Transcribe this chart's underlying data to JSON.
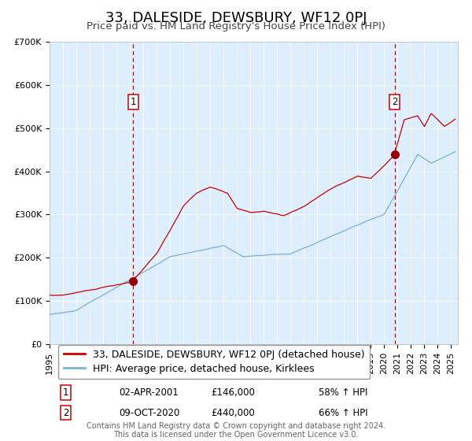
{
  "title": "33, DALESIDE, DEWSBURY, WF12 0PJ",
  "subtitle": "Price paid vs. HM Land Registry's House Price Index (HPI)",
  "legend_line1": "33, DALESIDE, DEWSBURY, WF12 0PJ (detached house)",
  "legend_line2": "HPI: Average price, detached house, Kirklees",
  "annotation1_label": "1",
  "annotation1_date": "02-APR-2001",
  "annotation1_value": "£146,000",
  "annotation1_hpi": "58% ↑ HPI",
  "annotation2_label": "2",
  "annotation2_date": "09-OCT-2020",
  "annotation2_value": "£440,000",
  "annotation2_hpi": "66% ↑ HPI",
  "marker1_x": 2001.25,
  "marker1_y": 146000,
  "marker2_x": 2020.77,
  "marker2_y": 440000,
  "vline1_x": 2001.25,
  "vline2_x": 2020.77,
  "xlim": [
    1995,
    2025.5
  ],
  "ylim": [
    0,
    700000
  ],
  "yticks": [
    0,
    100000,
    200000,
    300000,
    400000,
    500000,
    600000,
    700000
  ],
  "ytick_labels": [
    "£0",
    "£100K",
    "£200K",
    "£300K",
    "£400K",
    "£500K",
    "£600K",
    "£700K"
  ],
  "red_line_color": "#cc0000",
  "blue_line_color": "#7bafd4",
  "plot_bg_color": "#ddeeff",
  "vline_color": "#cc0000",
  "marker_color": "#990000",
  "box_edge_color": "#cc0000",
  "footer_text": "Contains HM Land Registry data © Crown copyright and database right 2024.\nThis data is licensed under the Open Government Licence v3.0.",
  "title_fontsize": 13,
  "subtitle_fontsize": 9.5,
  "tick_fontsize": 8,
  "legend_fontsize": 9,
  "footer_fontsize": 7
}
